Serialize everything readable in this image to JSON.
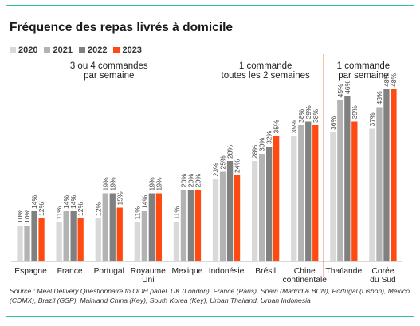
{
  "title": "Fréquence des repas livrés à domicile",
  "legend": [
    {
      "label": "2020",
      "color": "#d9d9d9"
    },
    {
      "label": "2021",
      "color": "#b3b3b3"
    },
    {
      "label": "2022",
      "color": "#808080"
    },
    {
      "label": "2023",
      "color": "#ff4b12"
    }
  ],
  "chart_data": {
    "type": "bar",
    "series": [
      {
        "name": "2020",
        "color": "#d9d9d9"
      },
      {
        "name": "2021",
        "color": "#b3b3b3"
      },
      {
        "name": "2022",
        "color": "#808080"
      },
      {
        "name": "2023",
        "color": "#ff4b12"
      }
    ],
    "groups": [
      {
        "label": "3 ou 4 commandes\npar semaine",
        "countries": [
          "Espagne",
          "France",
          "Portugal",
          "Royaume\nUni",
          "Mexique"
        ]
      },
      {
        "label": "1 commande\ntoutes les 2 semaines",
        "countries": [
          "Indonésie",
          "Brésil",
          "Chine\ncontinentale"
        ]
      },
      {
        "label": "1 commande\npar semaine",
        "countries": [
          "Thaïlande",
          "Corée\ndu Sud"
        ]
      }
    ],
    "categories": [
      "Espagne",
      "France",
      "Portugal",
      "Royaume\nUni",
      "Mexique",
      "Indonésie",
      "Brésil",
      "Chine\ncontinentale",
      "Thaïlande",
      "Corée\ndu Sud"
    ],
    "values": [
      [
        10,
        10,
        14,
        12
      ],
      [
        11,
        14,
        14,
        12
      ],
      [
        12,
        19,
        19,
        15
      ],
      [
        11,
        14,
        19,
        19
      ],
      [
        11,
        20,
        20,
        20
      ],
      [
        23,
        25,
        28,
        24
      ],
      [
        28,
        30,
        32,
        35
      ],
      [
        35,
        38,
        39,
        38
      ],
      [
        36,
        45,
        46,
        39
      ],
      [
        37,
        43,
        48,
        48
      ]
    ],
    "ylim": [
      0,
      55
    ]
  },
  "source": "Source : Meal Delivery Questionnaire to OOH panel. UK (London), France (Paris), Spain (Madrid & BCN), Portugal (Lisbon), Mexico (CDMX), Brazil (GSP), Mainland China (Key), South Korea (Key), Urban Thailand, Urban Indonesia"
}
